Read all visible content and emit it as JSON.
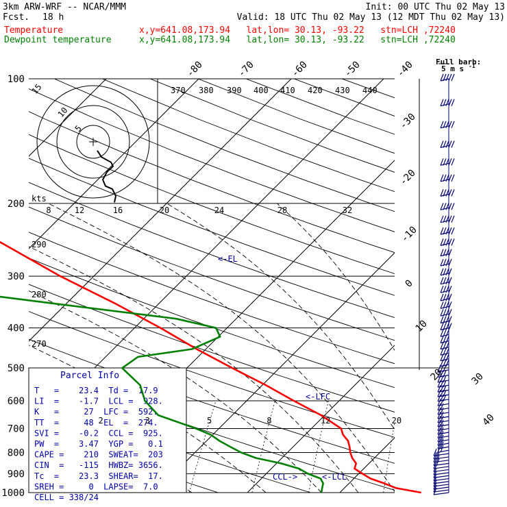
{
  "header": {
    "model": "3km ARW-WRF -- NCAR/MMM",
    "forecast_label": "Fcst.",
    "forecast_hours": "18 h",
    "init": "Init: 00 UTC Thu 02 May 13",
    "valid": "Valid: 18 UTC Thu 02 May 13 (12 MDT Thu 02 May 13)",
    "temperature_label": "Temperature",
    "dewpoint_label": "Dewpoint temperature",
    "location": "x,y=641.08,173.94   lat,lon= 30.13, -93.22   stn=LCH ,72240"
  },
  "legend_barb": {
    "title": "Full barb:",
    "value": "5 m s",
    "exponent": "-1"
  },
  "parcel_info": {
    "title": "Parcel Info",
    "rows": [
      "T   =    23.4  Td =  17.9",
      "LI  =    -1.7  LCL =  928.",
      "K   =     27  LFC =  592.",
      "TT  =     48  EL  =  274.",
      "SVI =    -0.2  CCL =  925.",
      "PW  =    3.47  YGP =   0.1",
      "CAPE =    210  SWEAT=  203",
      "CIN  =   -115  HWBZ= 3656.",
      "Tc  =    23.3  SHEAR=  17.",
      "SREH =     0  LAPSE=  7.0",
      "CELL = 338/24"
    ]
  },
  "chart_data": {
    "type": "line",
    "title": "",
    "xlabel": "",
    "ylabel": "",
    "pressure_levels": [
      100,
      200,
      300,
      400,
      500,
      600,
      700,
      800,
      900,
      1000
    ],
    "isotherm_labels": [
      -80,
      -70,
      -60,
      -50,
      -40,
      -30,
      -20,
      -10,
      0,
      10,
      20,
      30,
      40
    ],
    "theta_labels": [
      370,
      380,
      390,
      400,
      410,
      420,
      430,
      440,
      290,
      280,
      270
    ],
    "mixing_ratio_labels": [
      2,
      3,
      5,
      8,
      12,
      20
    ],
    "hodograph": {
      "units": "kts",
      "axis_labels": [
        8,
        12,
        16,
        20,
        24,
        28,
        32
      ],
      "ring_labels": [
        5,
        10,
        15
      ],
      "points": [
        [
          0.6,
          -1.5
        ],
        [
          1.2,
          -2.6
        ],
        [
          1.8,
          -3.0
        ],
        [
          2.6,
          -3.5
        ],
        [
          2.9,
          -4.2
        ],
        [
          2.0,
          -5.2
        ],
        [
          1.4,
          -6.5
        ],
        [
          1.8,
          -7.6
        ],
        [
          2.8,
          -8.1
        ],
        [
          3.3,
          -9.3
        ],
        [
          3.1,
          -10.4
        ]
      ]
    },
    "series": [
      {
        "name": "Temperature",
        "color": "#ff0000",
        "points": [
          [
            1000,
            28.8
          ],
          [
            975,
            25.6
          ],
          [
            950,
            23.8
          ],
          [
            925,
            21.8
          ],
          [
            900,
            20.4
          ],
          [
            875,
            19.0
          ],
          [
            850,
            18.6
          ],
          [
            825,
            17.6
          ],
          [
            800,
            16.8
          ],
          [
            775,
            16.1
          ],
          [
            750,
            15.3
          ],
          [
            725,
            14.1
          ],
          [
            700,
            13.2
          ],
          [
            650,
            9.6
          ],
          [
            600,
            5.1
          ],
          [
            550,
            0.4
          ],
          [
            500,
            -5.1
          ],
          [
            450,
            -11.0
          ],
          [
            400,
            -17.2
          ],
          [
            350,
            -24.6
          ],
          [
            300,
            -33.6
          ],
          [
            250,
            -43.4
          ],
          [
            225,
            -49.2
          ],
          [
            200,
            -56.2
          ],
          [
            180,
            -60.6
          ],
          [
            160,
            -62.2
          ],
          [
            140,
            -63.2
          ],
          [
            120,
            -67.0
          ],
          [
            100,
            -71.8
          ]
        ]
      },
      {
        "name": "Dewpoint temperature",
        "color": "#008000",
        "points": [
          [
            1000,
            18.0
          ],
          [
            975,
            17.6
          ],
          [
            950,
            17.2
          ],
          [
            925,
            16.4
          ],
          [
            900,
            14.5
          ],
          [
            875,
            13.0
          ],
          [
            850,
            10.5
          ],
          [
            825,
            7.2
          ],
          [
            800,
            5.0
          ],
          [
            775,
            3.2
          ],
          [
            750,
            1.4
          ],
          [
            725,
            -0.2
          ],
          [
            700,
            -2.5
          ],
          [
            650,
            -8.0
          ],
          [
            600,
            -11.0
          ],
          [
            550,
            -13.2
          ],
          [
            500,
            -17.0
          ],
          [
            470,
            -16.5
          ],
          [
            450,
            -11.5
          ],
          [
            420,
            -9.8
          ],
          [
            400,
            -11.2
          ],
          [
            380,
            -16.5
          ],
          [
            350,
            -31.0
          ],
          [
            320,
            -46.5
          ],
          [
            300,
            -53.0
          ],
          [
            280,
            -57.5
          ],
          [
            250,
            -63.3
          ],
          [
            230,
            -67.5
          ],
          [
            210,
            -69.5
          ],
          [
            200,
            -70.2
          ],
          [
            180,
            -71.5
          ],
          [
            160,
            -73.2
          ],
          [
            140,
            -75.5
          ],
          [
            120,
            -78.0
          ],
          [
            100,
            -79.8
          ]
        ]
      }
    ],
    "annotations": [
      "<-EL",
      "<-LFC",
      "<-LCL",
      "CCL->"
    ],
    "wind_profile_pressures": [
      1000,
      985,
      970,
      955,
      940,
      925,
      910,
      895,
      880,
      865,
      850,
      835,
      820,
      805,
      790,
      775,
      760,
      745,
      730,
      715,
      700,
      685,
      670,
      655,
      640,
      625,
      610,
      595,
      580,
      565,
      550,
      535,
      520,
      505,
      490,
      475,
      460,
      445,
      430,
      415,
      400,
      385,
      370,
      355,
      340,
      325,
      310,
      295,
      280,
      265,
      250,
      235,
      220,
      205,
      190,
      175,
      160,
      145,
      130,
      115,
      100
    ]
  }
}
